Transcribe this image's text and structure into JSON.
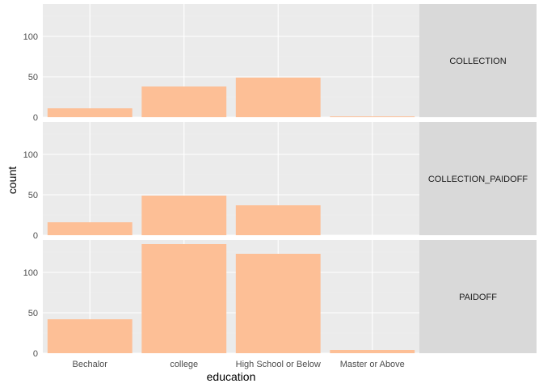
{
  "chart_data": {
    "type": "bar",
    "xlabel": "education",
    "ylabel": "count",
    "categories": [
      "Bechalor",
      "college",
      "High School or Below",
      "Master or Above"
    ],
    "y_ticks": [
      0,
      50,
      100
    ],
    "ylim": [
      0,
      140
    ],
    "grid": true,
    "facet_position": "right",
    "panels": [
      {
        "label": "COLLECTION",
        "values": [
          11,
          38,
          49,
          1
        ]
      },
      {
        "label": "COLLECTION_PAIDOFF",
        "values": [
          16,
          49,
          37,
          0
        ]
      },
      {
        "label": "PAIDOFF",
        "values": [
          42,
          135,
          123,
          4
        ]
      }
    ],
    "colors": {
      "bar": "#fdbf96",
      "panel_bg": "#ebebeb",
      "strip_bg": "#d9d9d9",
      "grid_major": "#ffffff",
      "grid_minor": "#f2f2f2"
    }
  }
}
